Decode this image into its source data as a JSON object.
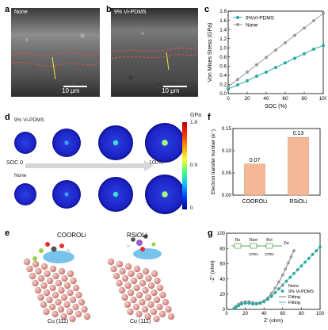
{
  "panels": {
    "a": {
      "label": "a",
      "tag": "None",
      "scale": "10 μm"
    },
    "b": {
      "label": "b",
      "tag": "9% Vi-PDMS",
      "scale": "10 μm"
    },
    "c": {
      "label": "c"
    },
    "d": {
      "label": "d",
      "top_row_label": "9% Vi-PDMS",
      "bottom_row_label": "None",
      "soc_start": "SOC 0",
      "soc_end": "100%",
      "colorbar_unit": "GPa",
      "colorbar_ticks": [
        "1.8",
        "0.9",
        "0"
      ]
    },
    "e": {
      "label": "e",
      "left_title": "COOROLi",
      "right_title": "RSiOLi",
      "left_surface": "Cu (111)",
      "right_surface": "Cu (111)"
    },
    "f": {
      "label": "f"
    },
    "g": {
      "label": "g",
      "circuit": {
        "r_s": "Rs",
        "r_sei": "Rsei",
        "r_ct": "Rct",
        "cpe1": "CPE1",
        "cpe2": "CPE2",
        "z_w": "Zw"
      }
    }
  },
  "watermark": "",
  "chart_data": [
    {
      "panel": "c",
      "type": "line",
      "xlabel": "SOC (%)",
      "ylabel": "Von Mises Stress (GPa)",
      "xlim": [
        0,
        100
      ],
      "ylim": [
        0.0,
        1.8
      ],
      "xticks": [
        "0",
        "20",
        "40",
        "60",
        "80",
        "100"
      ],
      "yticks": [
        "0.0",
        "0.2",
        "0.4",
        "0.6",
        "0.8",
        "1.0",
        "1.2",
        "1.4",
        "1.6",
        "1.8"
      ],
      "legend_position": "top-left",
      "x": [
        0,
        10,
        20,
        30,
        40,
        50,
        60,
        70,
        80,
        90,
        100
      ],
      "series": [
        {
          "name": "9%Vi-PDMS",
          "color": "#2aa7a0",
          "values": [
            0.1,
            0.19,
            0.28,
            0.38,
            0.47,
            0.57,
            0.67,
            0.77,
            0.87,
            0.97,
            1.05
          ]
        },
        {
          "name": "None",
          "color": "#9a9a9a",
          "values": [
            0.15,
            0.31,
            0.47,
            0.63,
            0.79,
            0.95,
            1.11,
            1.27,
            1.43,
            1.59,
            1.75
          ]
        }
      ]
    },
    {
      "panel": "f",
      "type": "bar",
      "ylabel": "Electron transfer number (e⁻)",
      "ylim": [
        0.0,
        0.15
      ],
      "yticks": [
        "0.00",
        "0.05",
        "0.10",
        "0.15"
      ],
      "categories": [
        "COOROLi",
        "RSiOLi"
      ],
      "values": [
        0.07,
        0.13
      ],
      "value_labels": [
        "0.07",
        "0.13"
      ],
      "bar_color": "#f5b897"
    },
    {
      "panel": "g",
      "type": "scatter",
      "xlabel": "Z' (ohm)",
      "ylabel": "-Z'' (ohm)",
      "xlim": [
        0,
        100
      ],
      "ylim": [
        0,
        100
      ],
      "xticks": [
        "0",
        "20",
        "40",
        "60",
        "80",
        "100"
      ],
      "yticks": [
        "0",
        "20",
        "40",
        "60",
        "80",
        "100"
      ],
      "legend_position": "bottom-right",
      "series": [
        {
          "name": "None",
          "color": "#9a9a9a",
          "x": [
            8,
            10,
            13,
            16,
            20,
            24,
            28,
            32,
            36,
            40,
            44,
            48,
            52,
            56,
            60,
            63,
            66,
            69,
            72
          ],
          "y": [
            1,
            4,
            7,
            9,
            10,
            10,
            9,
            8,
            9,
            11,
            15,
            21,
            28,
            36,
            45,
            53,
            61,
            69,
            77
          ]
        },
        {
          "name": "9% Vi-PDMS",
          "color": "#2aa7a0",
          "x": [
            8,
            10,
            13,
            16,
            20,
            24,
            28,
            32,
            36,
            40,
            44,
            48,
            52,
            56,
            60,
            64,
            68,
            72,
            76,
            80,
            84,
            88,
            92,
            96,
            100
          ],
          "y": [
            1,
            3,
            5,
            7,
            8,
            8,
            7,
            7,
            8,
            10,
            13,
            17,
            22,
            27,
            32,
            37,
            42,
            47,
            52,
            57,
            62,
            67,
            72,
            77,
            82
          ]
        },
        {
          "name": "Fitting",
          "color": "#555555",
          "style": "line"
        },
        {
          "name": "Fitting",
          "color": "#2aa7a0",
          "style": "line"
        }
      ]
    }
  ]
}
